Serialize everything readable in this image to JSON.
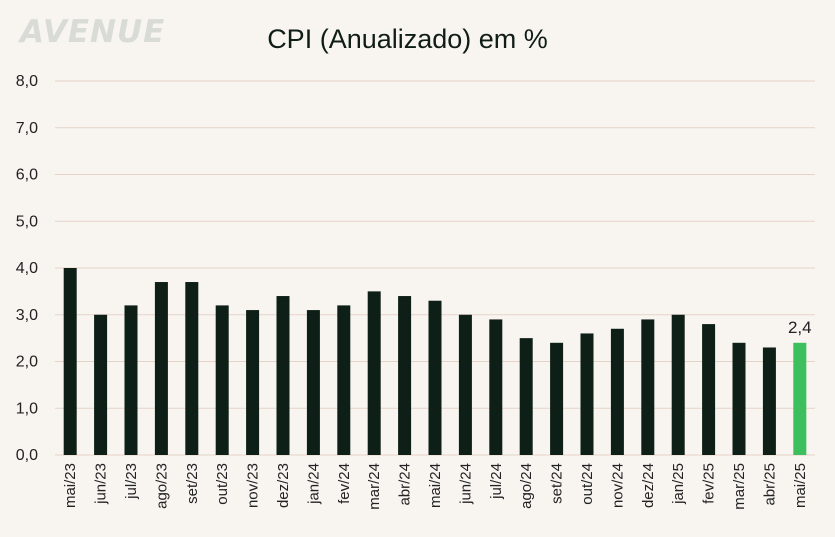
{
  "logo": "AVENUE",
  "chart_data": {
    "type": "bar",
    "title": "CPI (Anualizado) em %",
    "xlabel": "",
    "ylabel": "",
    "ylim": [
      0,
      8
    ],
    "yticks": [
      "0,0",
      "1,0",
      "2,0",
      "3,0",
      "4,0",
      "5,0",
      "6,0",
      "7,0",
      "8,0"
    ],
    "grid": true,
    "categories": [
      "mai/23",
      "jun/23",
      "jul/23",
      "ago/23",
      "set/23",
      "out/23",
      "nov/23",
      "dez/23",
      "jan/24",
      "fev/24",
      "mar/24",
      "abr/24",
      "mai/24",
      "jun/24",
      "jul/24",
      "ago/24",
      "set/24",
      "out/24",
      "nov/24",
      "dez/24",
      "jan/25",
      "fev/25",
      "mar/25",
      "abr/25",
      "mai/25"
    ],
    "values": [
      4.0,
      3.0,
      3.2,
      3.7,
      3.7,
      3.2,
      3.1,
      3.4,
      3.1,
      3.2,
      3.5,
      3.4,
      3.3,
      3.0,
      2.9,
      2.5,
      2.4,
      2.6,
      2.7,
      2.9,
      3.0,
      2.8,
      2.4,
      2.3,
      2.4
    ],
    "data_labels": [
      {
        "category": "mai/25",
        "text": "2,4"
      }
    ],
    "colors": {
      "bar": "#0d1f16",
      "highlight": "#3cbf5c",
      "grid": "#e6d3c8"
    },
    "highlight_category": "mai/25"
  }
}
